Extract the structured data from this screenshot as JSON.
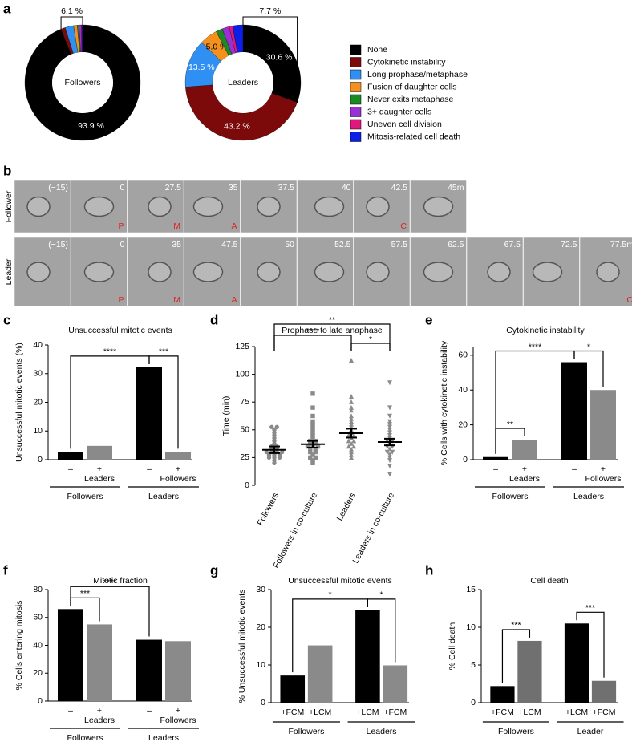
{
  "chart_data": [
    {
      "type": "donut",
      "panel": "a",
      "categories": [
        "None",
        "Cytokinetic instability",
        "Long prophase/metaphase",
        "Fusion of daughter cells",
        "Never exits metaphase",
        "3+ daughter cells",
        "Uneven cell division",
        "Mitosis-related cell death"
      ],
      "colors": [
        "#000000",
        "#7d0a0a",
        "#2f8ff2",
        "#f4901e",
        "#1c8a22",
        "#9a2fd6",
        "#e0177d",
        "#0b1fe6"
      ],
      "series": [
        {
          "name": "Followers",
          "values": [
            93.9,
            1.2,
            2.4,
            1.0,
            0.5,
            0.6,
            0.2,
            0.2
          ],
          "value_labels": [
            "93.9 %",
            null,
            null,
            null,
            null,
            null,
            null,
            null
          ],
          "annotation": "6.1 %"
        },
        {
          "name": "Leaders",
          "values": [
            30.6,
            43.2,
            13.5,
            5.0,
            1.8,
            2.0,
            1.0,
            2.9
          ],
          "value_labels": [
            "30.6 %",
            "43.2 %",
            "13.5 %",
            "5.0 %",
            null,
            null,
            null,
            null
          ],
          "annotation": "7.7 %"
        }
      ]
    },
    {
      "type": "image_sequence",
      "panel": "b",
      "rows": [
        {
          "name": "Follower",
          "times": [
            "(−15)",
            "0",
            "27.5",
            "35",
            "37.5",
            "40",
            "42.5",
            "45m"
          ],
          "phases": [
            null,
            "P",
            "M",
            "A",
            null,
            null,
            "C",
            null
          ]
        },
        {
          "name": "Leader",
          "times": [
            "(−15)",
            "0",
            "35",
            "47.5",
            "50",
            "52.5",
            "57.5",
            "62.5",
            "67.5",
            "72.5",
            "77.5m"
          ],
          "phases": [
            null,
            "P",
            "M",
            "A",
            null,
            null,
            null,
            null,
            null,
            null,
            "C"
          ]
        }
      ]
    },
    {
      "type": "bar",
      "panel": "c",
      "title": "Unsuccessful mitotic events",
      "ylabel": "Unsuccessful mitotic events (%)",
      "categories": [
        "–",
        "+",
        "–",
        "+"
      ],
      "treatment_labels": [
        null,
        "Leaders",
        null,
        "Followers"
      ],
      "groups": [
        "Followers",
        "Leaders"
      ],
      "values": [
        2.7,
        4.8,
        32.2,
        2.7
      ],
      "colors": [
        "#000000",
        "#8a8a8a",
        "#000000",
        "#8a8a8a"
      ],
      "ylim": [
        0,
        40
      ],
      "yticks": [
        0,
        10,
        20,
        30,
        40
      ],
      "significance": [
        {
          "bars": [
            0,
            2
          ],
          "label": "****"
        },
        {
          "bars": [
            2,
            3
          ],
          "label": "***"
        }
      ]
    },
    {
      "type": "dotplot",
      "panel": "d",
      "title": "Prophase to late anaphase",
      "ylabel": "Time (min)",
      "categories": [
        "Followers",
        "Followers in co-culture",
        "Leaders",
        "Leaders in co-culture"
      ],
      "markers": [
        "circle",
        "square",
        "triangle-up",
        "triangle-down"
      ],
      "color": "#8a8a8a",
      "values": [
        [
          20,
          22.5,
          25,
          25,
          25,
          27.5,
          27.5,
          27.5,
          30,
          30,
          30,
          30,
          32.5,
          32.5,
          35,
          35,
          37.5,
          40,
          42.5,
          45,
          47.5,
          50,
          52.5,
          52.5
        ],
        [
          20,
          22.5,
          25,
          25,
          27.5,
          30,
          30,
          32.5,
          32.5,
          35,
          35,
          35,
          37.5,
          37.5,
          40,
          40,
          42.5,
          45,
          47.5,
          50,
          52.5,
          55,
          57.5,
          62.5,
          70,
          82.5
        ],
        [
          25,
          27.5,
          30,
          32.5,
          35,
          35,
          37.5,
          40,
          40,
          42.5,
          45,
          45,
          47.5,
          50,
          52.5,
          55,
          57.5,
          60,
          62.5,
          67.5,
          70,
          75,
          80,
          112.5
        ],
        [
          10,
          17.5,
          22.5,
          25,
          27.5,
          30,
          30,
          32.5,
          35,
          35,
          37.5,
          40,
          40,
          42.5,
          45,
          47.5,
          50,
          52.5,
          55,
          57.5,
          62.5,
          70,
          92.5
        ]
      ],
      "means": [
        32,
        37,
        47,
        39
      ],
      "sems": [
        3,
        3,
        4,
        3
      ],
      "ylim": [
        0,
        125
      ],
      "yticks": [
        0,
        25,
        50,
        75,
        100,
        125
      ],
      "significance": [
        {
          "bars": [
            0,
            2
          ],
          "label": "****"
        },
        {
          "bars": [
            2,
            3
          ],
          "label": "*"
        },
        {
          "bars": [
            0,
            3
          ],
          "label": "**"
        }
      ]
    },
    {
      "type": "bar",
      "panel": "e",
      "title": "Cytokinetic instability",
      "ylabel": "% Cells with cytokinetic instability",
      "categories": [
        "–",
        "+",
        "–",
        "+"
      ],
      "treatment_labels": [
        null,
        "Leaders",
        null,
        "Followers"
      ],
      "groups": [
        "Followers",
        "Leaders"
      ],
      "values": [
        1.5,
        11.5,
        56,
        40
      ],
      "colors": [
        "#000000",
        "#8a8a8a",
        "#000000",
        "#8a8a8a"
      ],
      "ylim": [
        0,
        65
      ],
      "yticks": [
        0,
        20,
        40,
        60
      ],
      "significance": [
        {
          "bars": [
            0,
            1
          ],
          "label": "**"
        },
        {
          "bars": [
            0,
            2
          ],
          "label": "****"
        },
        {
          "bars": [
            2,
            3
          ],
          "label": "*"
        }
      ]
    },
    {
      "type": "bar",
      "panel": "f",
      "title": "Mitotic fraction",
      "ylabel": "% Cells entering mitosis",
      "categories": [
        "–",
        "+",
        "–",
        "+"
      ],
      "treatment_labels": [
        null,
        "Leaders",
        null,
        "Followers"
      ],
      "groups": [
        "Followers",
        "Leaders"
      ],
      "values": [
        66,
        55,
        44,
        43
      ],
      "colors": [
        "#000000",
        "#8a8a8a",
        "#000000",
        "#8a8a8a"
      ],
      "ylim": [
        0,
        80
      ],
      "yticks": [
        0,
        20,
        40,
        60,
        80
      ],
      "significance": [
        {
          "bars": [
            0,
            1
          ],
          "label": "***"
        },
        {
          "bars": [
            0,
            2
          ],
          "label": "****"
        }
      ]
    },
    {
      "type": "bar",
      "panel": "g",
      "title": "Unsuccessful mitotic events",
      "ylabel": "% Unsuccessful mitotic events",
      "categories": [
        "+FCM",
        "+LCM",
        "+LCM",
        "+FCM"
      ],
      "groups": [
        "Followers",
        "Leaders"
      ],
      "values": [
        7.2,
        15.2,
        24.5,
        9.9
      ],
      "colors": [
        "#000000",
        "#8a8a8a",
        "#000000",
        "#8a8a8a"
      ],
      "ylim": [
        0,
        30
      ],
      "yticks": [
        0,
        10,
        20,
        30
      ],
      "significance": [
        {
          "bars": [
            0,
            2
          ],
          "label": "*"
        },
        {
          "bars": [
            2,
            3
          ],
          "label": "*"
        }
      ]
    },
    {
      "type": "bar",
      "panel": "h",
      "title": "Cell death",
      "ylabel": "% Cell death",
      "categories": [
        "+FCM",
        "+LCM",
        "+LCM",
        "+FCM"
      ],
      "groups": [
        "Followers",
        "Leader"
      ],
      "values": [
        2.2,
        8.2,
        10.5,
        2.9
      ],
      "colors": [
        "#000000",
        "#707070",
        "#000000",
        "#707070"
      ],
      "ylim": [
        0,
        15
      ],
      "yticks": [
        0,
        5,
        10,
        15
      ],
      "significance": [
        {
          "bars": [
            0,
            1
          ],
          "label": "***"
        },
        {
          "bars": [
            2,
            3
          ],
          "label": "***"
        }
      ]
    }
  ]
}
